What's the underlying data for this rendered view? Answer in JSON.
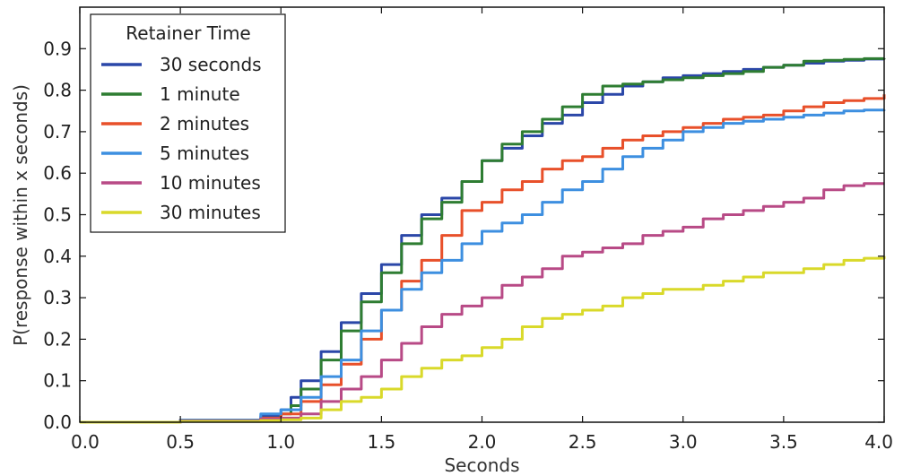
{
  "chart_data": {
    "type": "line",
    "xlabel": "Seconds",
    "ylabel": "P(response within x seconds)",
    "xlim": [
      0.0,
      4.0
    ],
    "ylim": [
      0.0,
      1.0
    ],
    "x_ticks": [
      "0.0",
      "0.5",
      "1.0",
      "1.5",
      "2.0",
      "2.5",
      "3.0",
      "3.5",
      "4.0"
    ],
    "y_ticks": [
      "0.0",
      "0.1",
      "0.2",
      "0.3",
      "0.4",
      "0.5",
      "0.6",
      "0.7",
      "0.8",
      "0.9"
    ],
    "grid": false,
    "legend_title": "Retainer Time",
    "legend_placement": "top-left",
    "series": [
      {
        "name": "30 seconds",
        "color": "#2b47a8",
        "x": [
          0.0,
          0.5,
          0.9,
          1.0,
          1.05,
          1.1,
          1.2,
          1.3,
          1.4,
          1.5,
          1.6,
          1.7,
          1.8,
          1.9,
          2.0,
          2.1,
          2.2,
          2.3,
          2.4,
          2.5,
          2.6,
          2.7,
          2.8,
          2.9,
          3.0,
          3.1,
          3.2,
          3.3,
          3.4,
          3.5,
          3.6,
          3.7,
          3.8,
          3.9,
          4.0
        ],
        "y": [
          0.0,
          0.005,
          0.015,
          0.03,
          0.06,
          0.1,
          0.17,
          0.24,
          0.31,
          0.38,
          0.45,
          0.5,
          0.54,
          0.58,
          0.63,
          0.66,
          0.69,
          0.72,
          0.74,
          0.77,
          0.79,
          0.81,
          0.82,
          0.83,
          0.835,
          0.84,
          0.845,
          0.85,
          0.855,
          0.86,
          0.865,
          0.87,
          0.872,
          0.875,
          0.875
        ]
      },
      {
        "name": "1 minute",
        "color": "#2e7d32",
        "x": [
          0.0,
          0.5,
          0.9,
          1.0,
          1.05,
          1.1,
          1.2,
          1.3,
          1.4,
          1.5,
          1.6,
          1.7,
          1.8,
          1.9,
          2.0,
          2.1,
          2.2,
          2.3,
          2.4,
          2.5,
          2.6,
          2.7,
          2.8,
          2.9,
          3.0,
          3.1,
          3.2,
          3.3,
          3.4,
          3.5,
          3.6,
          3.7,
          3.8,
          3.9,
          4.0
        ],
        "y": [
          0.0,
          0.005,
          0.01,
          0.02,
          0.04,
          0.08,
          0.15,
          0.22,
          0.29,
          0.36,
          0.43,
          0.49,
          0.53,
          0.58,
          0.63,
          0.67,
          0.7,
          0.73,
          0.76,
          0.79,
          0.81,
          0.815,
          0.82,
          0.825,
          0.83,
          0.835,
          0.84,
          0.845,
          0.855,
          0.86,
          0.87,
          0.872,
          0.874,
          0.876,
          0.877
        ]
      },
      {
        "name": "2 minutes",
        "color": "#e8502a",
        "x": [
          0.0,
          0.5,
          0.9,
          1.0,
          1.1,
          1.2,
          1.3,
          1.4,
          1.5,
          1.6,
          1.7,
          1.8,
          1.9,
          2.0,
          2.1,
          2.2,
          2.3,
          2.4,
          2.5,
          2.6,
          2.7,
          2.8,
          2.9,
          3.0,
          3.1,
          3.2,
          3.3,
          3.4,
          3.5,
          3.6,
          3.7,
          3.8,
          3.9,
          4.0
        ],
        "y": [
          0.0,
          0.005,
          0.01,
          0.02,
          0.05,
          0.09,
          0.14,
          0.2,
          0.27,
          0.34,
          0.39,
          0.45,
          0.51,
          0.53,
          0.56,
          0.58,
          0.61,
          0.63,
          0.64,
          0.66,
          0.68,
          0.69,
          0.7,
          0.71,
          0.72,
          0.73,
          0.735,
          0.74,
          0.75,
          0.76,
          0.77,
          0.775,
          0.78,
          0.79
        ]
      },
      {
        "name": "5 minutes",
        "color": "#3d8fe0",
        "x": [
          0.0,
          0.5,
          0.9,
          1.0,
          1.1,
          1.2,
          1.3,
          1.4,
          1.5,
          1.6,
          1.7,
          1.8,
          1.9,
          2.0,
          2.1,
          2.2,
          2.3,
          2.4,
          2.5,
          2.6,
          2.7,
          2.8,
          2.9,
          3.0,
          3.1,
          3.2,
          3.3,
          3.4,
          3.5,
          3.6,
          3.7,
          3.8,
          3.9,
          4.0
        ],
        "y": [
          0.0,
          0.005,
          0.02,
          0.03,
          0.06,
          0.11,
          0.15,
          0.22,
          0.27,
          0.32,
          0.36,
          0.39,
          0.43,
          0.46,
          0.48,
          0.5,
          0.53,
          0.56,
          0.58,
          0.61,
          0.64,
          0.66,
          0.68,
          0.7,
          0.71,
          0.72,
          0.725,
          0.73,
          0.735,
          0.74,
          0.745,
          0.75,
          0.752,
          0.753
        ]
      },
      {
        "name": "10 minutes",
        "color": "#b84a86",
        "x": [
          0.0,
          0.5,
          0.9,
          1.0,
          1.1,
          1.2,
          1.3,
          1.4,
          1.5,
          1.6,
          1.7,
          1.8,
          1.9,
          2.0,
          2.1,
          2.2,
          2.3,
          2.4,
          2.5,
          2.6,
          2.7,
          2.8,
          2.9,
          3.0,
          3.1,
          3.2,
          3.3,
          3.4,
          3.5,
          3.6,
          3.7,
          3.8,
          3.9,
          4.0
        ],
        "y": [
          0.0,
          0.003,
          0.008,
          0.01,
          0.02,
          0.05,
          0.08,
          0.11,
          0.15,
          0.19,
          0.23,
          0.26,
          0.28,
          0.3,
          0.33,
          0.35,
          0.37,
          0.4,
          0.41,
          0.42,
          0.43,
          0.45,
          0.46,
          0.47,
          0.49,
          0.5,
          0.51,
          0.52,
          0.53,
          0.54,
          0.56,
          0.57,
          0.575,
          0.575
        ]
      },
      {
        "name": "30 minutes",
        "color": "#d9d92a",
        "x": [
          0.0,
          0.5,
          0.9,
          1.0,
          1.1,
          1.2,
          1.3,
          1.4,
          1.5,
          1.6,
          1.7,
          1.8,
          1.9,
          2.0,
          2.1,
          2.2,
          2.3,
          2.4,
          2.5,
          2.6,
          2.7,
          2.8,
          2.9,
          3.0,
          3.1,
          3.2,
          3.3,
          3.4,
          3.5,
          3.6,
          3.7,
          3.8,
          3.9,
          4.0
        ],
        "y": [
          0.0,
          0.002,
          0.004,
          0.006,
          0.01,
          0.03,
          0.05,
          0.06,
          0.08,
          0.11,
          0.13,
          0.15,
          0.16,
          0.18,
          0.2,
          0.23,
          0.25,
          0.26,
          0.27,
          0.28,
          0.3,
          0.31,
          0.32,
          0.32,
          0.33,
          0.34,
          0.35,
          0.36,
          0.36,
          0.37,
          0.38,
          0.39,
          0.395,
          0.4
        ]
      }
    ]
  }
}
